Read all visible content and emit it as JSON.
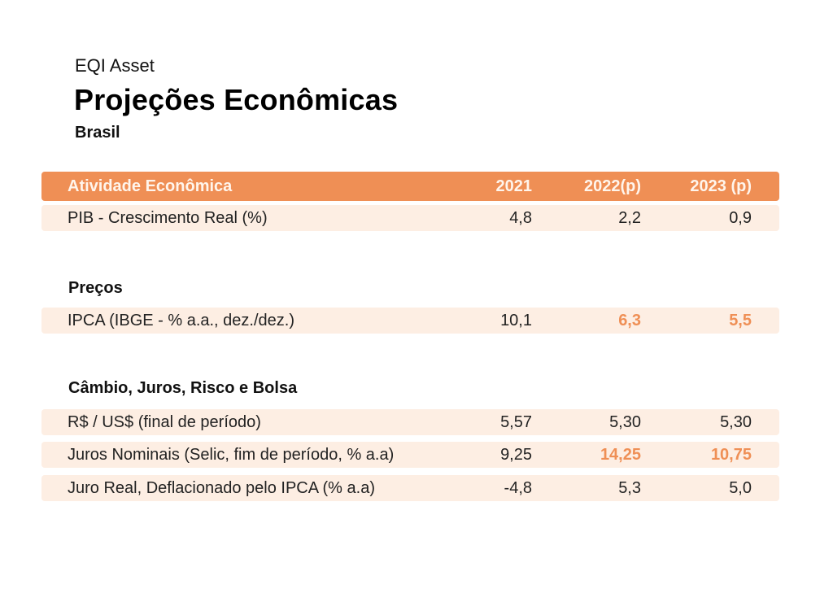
{
  "header": {
    "brand": "EQI Asset",
    "title": "Projeções Econômicas",
    "subtitle": "Brasil"
  },
  "table": {
    "columns": [
      "Atividade Econômica",
      "2021",
      "2022(p)",
      "2023 (p)"
    ],
    "activity": {
      "rows": [
        {
          "label": "PIB - Crescimento Real (%)",
          "v2021": "4,8",
          "v2022": "2,2",
          "v2023": "0,9"
        }
      ]
    },
    "prices": {
      "title": "Preços",
      "rows": [
        {
          "label": "IPCA (IBGE - % a.a., dez./dez.)",
          "v2021": "10,1",
          "v2022": "6,3",
          "v2023": "5,5"
        }
      ]
    },
    "exchange": {
      "title": "Câmbio, Juros, Risco e Bolsa",
      "rows": [
        {
          "label": "R$ / US$ (final de período)",
          "v2021": "5,57",
          "v2022": "5,30",
          "v2023": "5,30"
        },
        {
          "label": "Juros Nominais (Selic, fim de período, % a.a)",
          "v2021": "9,25",
          "v2022": "14,25",
          "v2023": "10,75"
        },
        {
          "label": "Juro Real, Deflacionado pelo IPCA (% a.a)",
          "v2021": "-4,8",
          "v2022": "5,3",
          "v2023": "5,0"
        }
      ]
    }
  },
  "colors": {
    "accent": "#ef8f55",
    "row_background": "#fdeee3",
    "text": "#111111"
  }
}
